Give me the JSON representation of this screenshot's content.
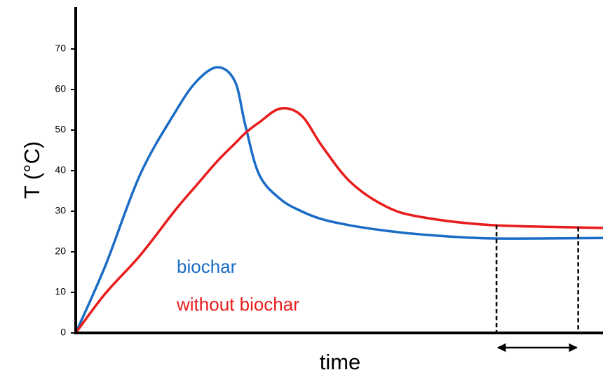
{
  "chart_data": {
    "type": "line",
    "ylabel": "T (°C)",
    "xlabel": "time",
    "x": [
      0,
      5.6,
      12.2,
      18.9,
      22.9,
      26.9,
      30.2,
      32.2,
      34.8,
      38.8,
      42.8,
      46.8,
      52.1,
      58.8,
      65.4,
      78.7,
      100
    ],
    "xlim": [
      0,
      100
    ],
    "ylim": [
      0,
      80
    ],
    "yticks": [
      0,
      10,
      20,
      30,
      40,
      50,
      60,
      70
    ],
    "markers": [
      79.8,
      95.3
    ],
    "series": [
      {
        "name": "biochar",
        "color": "#1a6cc6",
        "values": [
          0,
          16.5,
          39,
          54.5,
          62,
          65.5,
          62,
          51,
          39,
          33,
          30,
          28,
          26.5,
          25.2,
          24.3,
          23.3,
          23.4
        ]
      },
      {
        "name": "without biochar",
        "color": "#e81c1c",
        "values": [
          0,
          9.7,
          19.1,
          30.3,
          36.4,
          42.4,
          46.7,
          49.3,
          51.9,
          55.3,
          53.6,
          45.9,
          37.2,
          31.2,
          28.6,
          26.6,
          25.9
        ]
      }
    ]
  }
}
